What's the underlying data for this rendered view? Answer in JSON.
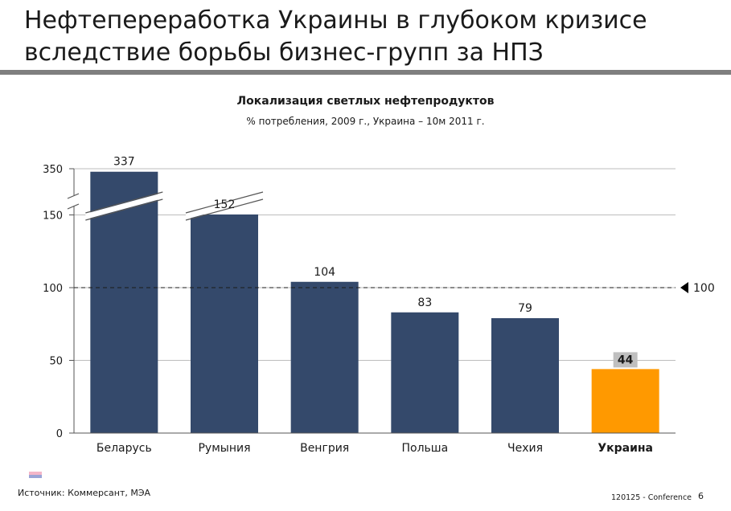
{
  "slide": {
    "title_lines": [
      "Нефтепереработка Украины в глубоком кризисе",
      "вследствие борьбы бизнес-групп за НПЗ"
    ],
    "source": "Источник: Коммерсант, МЭА",
    "conference": "120125 - Conference",
    "page_number": "6",
    "colors": {
      "title_rule": "#7f7f7f",
      "bar": "#34496b",
      "highlight_bar": "#ff9900",
      "highlight_label_bg": "#bfbfbf"
    },
    "flag_icon": "flag-icon"
  },
  "chart_data": {
    "type": "bar",
    "title": "Локализация светлых нефтепродуктов",
    "subtitle": "% потребления, 2009 г., Украина – 10м 2011 г.",
    "categories": [
      "Беларусь",
      "Румыния",
      "Венгрия",
      "Польша",
      "Чехия",
      "Украина"
    ],
    "values": [
      337,
      152,
      104,
      83,
      79,
      44
    ],
    "value_labels": [
      "337",
      "152",
      "104",
      "83",
      "79",
      "44"
    ],
    "highlight_index": 5,
    "y_ticks": [
      "0",
      "50",
      "100",
      "150",
      "350"
    ],
    "y_axis_break": "between 150 and 350",
    "ylim": [
      0,
      350
    ],
    "reference_line": {
      "value": 100,
      "label": "100",
      "style": "dashed"
    },
    "grid": true,
    "legend": "none"
  }
}
